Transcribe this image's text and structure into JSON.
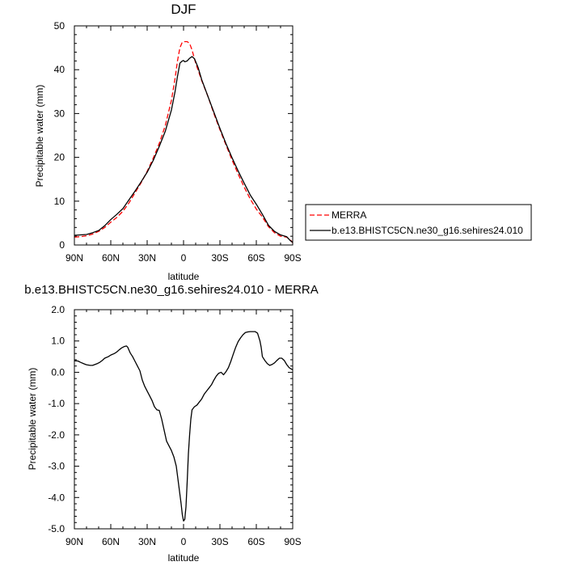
{
  "chart_data": [
    {
      "type": "line",
      "title": "DJF",
      "xlabel": "latitude",
      "ylabel": "Precipitable water (mm)",
      "xlim": [
        90,
        -90
      ],
      "ylim": [
        0,
        50
      ],
      "x_ticks": [
        90,
        60,
        30,
        0,
        -30,
        -60,
        -90
      ],
      "x_tick_labels": [
        "90N",
        "60N",
        "30N",
        "0",
        "30S",
        "60S",
        "90S"
      ],
      "y_ticks": [
        0,
        10,
        20,
        30,
        40,
        50
      ],
      "y_tick_labels": [
        "0",
        "10",
        "20",
        "30",
        "40",
        "50"
      ],
      "legend": {
        "position": "right-outside",
        "entries": [
          "MERRA",
          "b.e13.BHISTC5CN.ne30_g16.sehires24.010"
        ]
      },
      "series": [
        {
          "name": "MERRA",
          "color": "#ff0000",
          "style": "dashed",
          "points": [
            [
              90,
              1.8
            ],
            [
              85,
              1.9
            ],
            [
              80,
              2.1
            ],
            [
              75,
              2.5
            ],
            [
              70,
              3.1
            ],
            [
              65,
              4.0
            ],
            [
              60,
              5.2
            ],
            [
              55,
              6.3
            ],
            [
              50,
              7.7
            ],
            [
              45,
              9.6
            ],
            [
              40,
              11.9
            ],
            [
              35,
              14.2
            ],
            [
              30,
              16.8
            ],
            [
              25,
              19.8
            ],
            [
              20,
              23.2
            ],
            [
              15,
              27.3
            ],
            [
              10,
              33.0
            ],
            [
              7,
              38.0
            ],
            [
              5,
              42.0
            ],
            [
              3,
              45.0
            ],
            [
              1,
              46.3
            ],
            [
              0,
              46.4
            ],
            [
              -3,
              46.4
            ],
            [
              -5,
              46.0
            ],
            [
              -7,
              44.5
            ],
            [
              -10,
              41.5
            ],
            [
              -15,
              37.5
            ],
            [
              -20,
              34.0
            ],
            [
              -25,
              30.0
            ],
            [
              -30,
              26.3
            ],
            [
              -35,
              22.8
            ],
            [
              -40,
              19.4
            ],
            [
              -45,
              16.2
            ],
            [
              -50,
              13.2
            ],
            [
              -55,
              10.5
            ],
            [
              -60,
              8.2
            ],
            [
              -65,
              6.4
            ],
            [
              -70,
              4.2
            ],
            [
              -75,
              2.8
            ],
            [
              -80,
              2.0
            ],
            [
              -85,
              1.8
            ],
            [
              -88,
              1.2
            ],
            [
              -90,
              0.5
            ]
          ]
        },
        {
          "name": "b.e13.BHISTC5CN.ne30_g16.sehires24.010",
          "color": "#000000",
          "style": "solid",
          "points": [
            [
              90,
              2.2
            ],
            [
              85,
              2.3
            ],
            [
              80,
              2.4
            ],
            [
              75,
              2.8
            ],
            [
              70,
              3.3
            ],
            [
              65,
              4.4
            ],
            [
              60,
              5.8
            ],
            [
              55,
              7.0
            ],
            [
              50,
              8.3
            ],
            [
              45,
              10.3
            ],
            [
              40,
              12.3
            ],
            [
              35,
              14.4
            ],
            [
              30,
              16.6
            ],
            [
              25,
              19.3
            ],
            [
              20,
              22.5
            ],
            [
              15,
              26.0
            ],
            [
              10,
              30.8
            ],
            [
              7,
              35.0
            ],
            [
              5,
              38.5
            ],
            [
              3,
              41.5
            ],
            [
              1,
              42.0
            ],
            [
              0,
              42.1
            ],
            [
              -1,
              41.8
            ],
            [
              -3,
              42.0
            ],
            [
              -5,
              42.6
            ],
            [
              -7,
              43.0
            ],
            [
              -9,
              42.5
            ],
            [
              -12,
              40.5
            ],
            [
              -15,
              37.7
            ],
            [
              -20,
              34.0
            ],
            [
              -25,
              30.3
            ],
            [
              -30,
              26.6
            ],
            [
              -35,
              23.1
            ],
            [
              -40,
              19.9
            ],
            [
              -45,
              16.9
            ],
            [
              -50,
              14.1
            ],
            [
              -55,
              11.4
            ],
            [
              -60,
              9.3
            ],
            [
              -65,
              7.0
            ],
            [
              -70,
              4.5
            ],
            [
              -75,
              3.1
            ],
            [
              -80,
              2.3
            ],
            [
              -85,
              1.9
            ],
            [
              -88,
              1.0
            ],
            [
              -90,
              0.6
            ]
          ]
        }
      ]
    },
    {
      "type": "line",
      "title": "b.e13.BHISTC5CN.ne30_g16.sehires24.010 - MERRA",
      "xlabel": "latitude",
      "ylabel": "Precipitable water (mm)",
      "xlim": [
        90,
        -90
      ],
      "ylim": [
        -5,
        2
      ],
      "x_ticks": [
        90,
        60,
        30,
        0,
        -30,
        -60,
        -90
      ],
      "x_tick_labels": [
        "90N",
        "60N",
        "30N",
        "0",
        "30S",
        "60S",
        "90S"
      ],
      "y_ticks": [
        -5,
        -4,
        -3,
        -2,
        -1,
        0,
        1,
        2
      ],
      "y_tick_labels": [
        "-5.0",
        "-4.0",
        "-3.0",
        "-2.0",
        "-1.0",
        "0.0",
        "1.0",
        "2.0"
      ],
      "series": [
        {
          "name": "b.e13.BHISTC5CN.ne30_g16.sehires24.010 - MERRA",
          "color": "#000000",
          "style": "solid",
          "points": [
            [
              90,
              0.37
            ],
            [
              87,
              0.36
            ],
            [
              85,
              0.32
            ],
            [
              82,
              0.27
            ],
            [
              80,
              0.24
            ],
            [
              77,
              0.22
            ],
            [
              75,
              0.22
            ],
            [
              73,
              0.25
            ],
            [
              71,
              0.28
            ],
            [
              69,
              0.32
            ],
            [
              67,
              0.38
            ],
            [
              65,
              0.45
            ],
            [
              62,
              0.5
            ],
            [
              60,
              0.55
            ],
            [
              57,
              0.6
            ],
            [
              55,
              0.65
            ],
            [
              53,
              0.72
            ],
            [
              51,
              0.78
            ],
            [
              49,
              0.82
            ],
            [
              47,
              0.84
            ],
            [
              46,
              0.8
            ],
            [
              44,
              0.62
            ],
            [
              42,
              0.5
            ],
            [
              40,
              0.35
            ],
            [
              38,
              0.2
            ],
            [
              36,
              0.05
            ],
            [
              34,
              -0.25
            ],
            [
              32,
              -0.45
            ],
            [
              30,
              -0.6
            ],
            [
              28,
              -0.75
            ],
            [
              26,
              -0.9
            ],
            [
              24,
              -1.1
            ],
            [
              22,
              -1.2
            ],
            [
              20,
              -1.22
            ],
            [
              18,
              -1.5
            ],
            [
              16,
              -1.85
            ],
            [
              14,
              -2.2
            ],
            [
              12,
              -2.35
            ],
            [
              10,
              -2.5
            ],
            [
              8,
              -2.7
            ],
            [
              6,
              -3.0
            ],
            [
              4,
              -3.6
            ],
            [
              2,
              -4.2
            ],
            [
              1,
              -4.55
            ],
            [
              0,
              -4.75
            ],
            [
              -1,
              -4.7
            ],
            [
              -2,
              -4.3
            ],
            [
              -3,
              -3.5
            ],
            [
              -4,
              -2.6
            ],
            [
              -5,
              -2.0
            ],
            [
              -6,
              -1.5
            ],
            [
              -7,
              -1.2
            ],
            [
              -9,
              -1.1
            ],
            [
              -11,
              -1.05
            ],
            [
              -13,
              -0.95
            ],
            [
              -15,
              -0.85
            ],
            [
              -17,
              -0.7
            ],
            [
              -19,
              -0.6
            ],
            [
              -21,
              -0.5
            ],
            [
              -23,
              -0.4
            ],
            [
              -25,
              -0.25
            ],
            [
              -27,
              -0.12
            ],
            [
              -29,
              -0.03
            ],
            [
              -31,
              0.0
            ],
            [
              -33,
              -0.08
            ],
            [
              -35,
              0.02
            ],
            [
              -37,
              0.15
            ],
            [
              -39,
              0.35
            ],
            [
              -41,
              0.58
            ],
            [
              -43,
              0.8
            ],
            [
              -45,
              0.98
            ],
            [
              -47,
              1.1
            ],
            [
              -49,
              1.2
            ],
            [
              -51,
              1.27
            ],
            [
              -53,
              1.29
            ],
            [
              -55,
              1.3
            ],
            [
              -57,
              1.3
            ],
            [
              -59,
              1.3
            ],
            [
              -61,
              1.25
            ],
            [
              -63,
              1.0
            ],
            [
              -64,
              0.8
            ],
            [
              -65,
              0.5
            ],
            [
              -67,
              0.38
            ],
            [
              -69,
              0.28
            ],
            [
              -71,
              0.22
            ],
            [
              -73,
              0.25
            ],
            [
              -75,
              0.3
            ],
            [
              -77,
              0.38
            ],
            [
              -79,
              0.45
            ],
            [
              -81,
              0.45
            ],
            [
              -83,
              0.38
            ],
            [
              -85,
              0.25
            ],
            [
              -87,
              0.15
            ],
            [
              -89,
              0.1
            ],
            [
              -90,
              0.08
            ]
          ]
        }
      ]
    }
  ]
}
